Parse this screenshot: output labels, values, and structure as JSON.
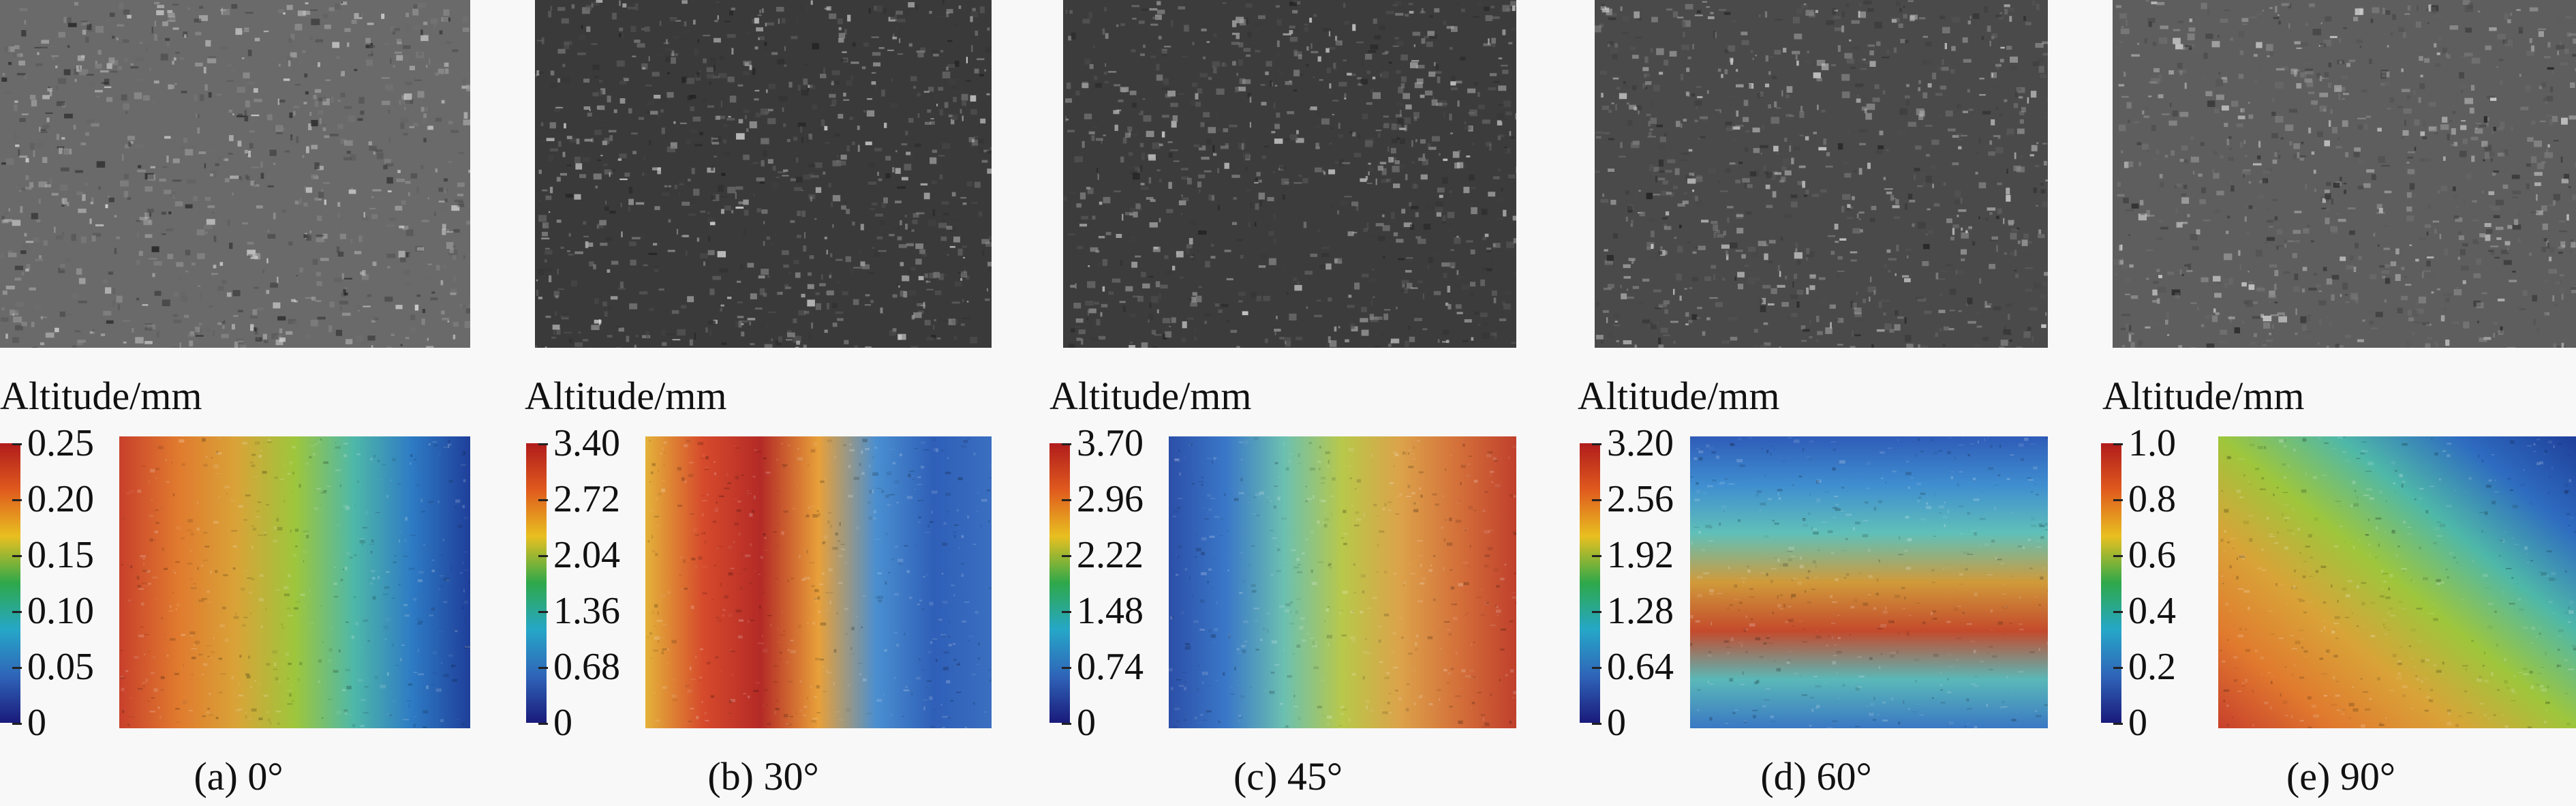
{
  "panels": [
    {
      "caption": "(a) 0°",
      "unit_label": "Altitude/mm",
      "colorbar_ticks": [
        "0.25",
        "0.20",
        "0.15",
        "0.10",
        "0.05",
        "0"
      ],
      "photo_tone": "#6a6a6a",
      "map_colors": [
        "#c8402c",
        "#e07a2e",
        "#d9a338",
        "#9ec63c",
        "#4fb8a8",
        "#2e7bc4",
        "#1f3f9a"
      ],
      "map_gradient": "horizontal"
    },
    {
      "caption": "(b) 30°",
      "unit_label": "Altitude/mm",
      "colorbar_ticks": [
        "3.40",
        "2.72",
        "2.04",
        "1.36",
        "0.68",
        "0"
      ],
      "photo_tone": "#3a3a3a",
      "map_colors": [
        "#e4b23a",
        "#d64a2c",
        "#b42a26",
        "#e8a03a",
        "#4a8fd0",
        "#2f5fb8",
        "#3a6fc0"
      ],
      "map_gradient": "horizontal"
    },
    {
      "caption": "(c) 45°",
      "unit_label": "Altitude/mm",
      "colorbar_ticks": [
        "3.70",
        "2.96",
        "2.22",
        "1.48",
        "0.74",
        "0"
      ],
      "photo_tone": "#3c3c3c",
      "map_colors": [
        "#2c4fa8",
        "#3a78c8",
        "#6cc0b0",
        "#b8c84a",
        "#dca24a",
        "#d4703a",
        "#c0402c"
      ],
      "map_gradient": "horizontal"
    },
    {
      "caption": "(d) 60°",
      "unit_label": "Altitude/mm",
      "colorbar_ticks": [
        "3.20",
        "2.56",
        "1.92",
        "1.28",
        "0.64",
        "0"
      ],
      "photo_tone": "#4a4a4a",
      "map_colors": [
        "#2f5cb8",
        "#3f8ed0",
        "#60c0b8",
        "#d09a3a",
        "#c44a2c",
        "#5ab8b8",
        "#3a78c4"
      ],
      "map_gradient": "vertical"
    },
    {
      "caption": "(e) 90°",
      "unit_label": "Altitude/mm",
      "colorbar_ticks": [
        "1.0",
        "0.8",
        "0.6",
        "0.4",
        "0.2",
        "0"
      ],
      "photo_tone": "#5e5e5e",
      "map_colors": [
        "#1f3f9a",
        "#2e6cc0",
        "#4fb8a8",
        "#9ec63c",
        "#d9a338",
        "#e07a2e",
        "#c8402c"
      ],
      "map_gradient": "diagonal"
    }
  ],
  "colorbar_colors": [
    "#b01c1c",
    "#e05a1e",
    "#e8c020",
    "#2ea84a",
    "#26a7c8",
    "#2f64b8",
    "#1a1a7a"
  ]
}
